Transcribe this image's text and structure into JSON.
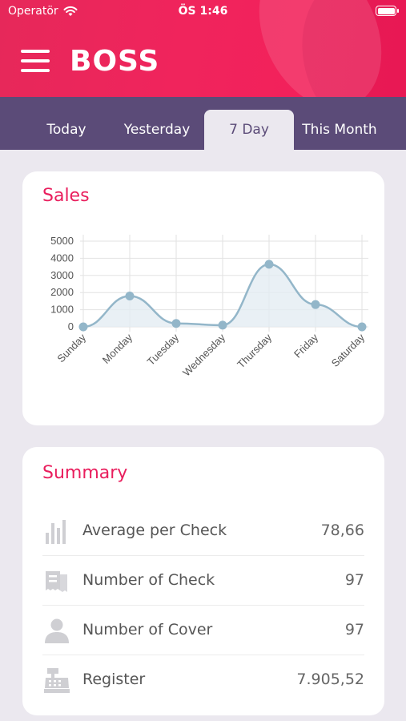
{
  "status_bar": {
    "carrier": "Operatör",
    "time": "ÖS 1:46"
  },
  "header": {
    "brand": "BOSS"
  },
  "tabs": [
    {
      "label": "Today"
    },
    {
      "label": "Yesterday"
    },
    {
      "label": "7 Day",
      "active": true
    },
    {
      "label": "This Month"
    }
  ],
  "sales": {
    "title": "Sales"
  },
  "chart_data": {
    "type": "area",
    "title": "",
    "xlabel": "",
    "ylabel": "",
    "categories": [
      "Sunday",
      "Monday",
      "Tuesday",
      "Wednesday",
      "Thursday",
      "Friday",
      "Saturday"
    ],
    "series": [
      {
        "values": [
          0,
          1800,
          200,
          100,
          3650,
          1300,
          0
        ]
      }
    ],
    "ylim": [
      0,
      5000
    ],
    "yticks": [
      5000,
      4000,
      3000,
      2000,
      1000,
      0
    ],
    "grid": true,
    "legend": "none",
    "colors": {
      "line": "#93b6c9",
      "fill": "#e3ecf3",
      "point": "#93b6c9"
    }
  },
  "summary": {
    "title": "Summary",
    "rows": [
      {
        "icon": "bar-chart-icon",
        "label": "Average per Check",
        "value": "78,66"
      },
      {
        "icon": "receipt-icon",
        "label": "Number of Check",
        "value": "97"
      },
      {
        "icon": "person-icon",
        "label": "Number of Cover",
        "value": "97"
      },
      {
        "icon": "cash-register-icon",
        "label": "Register",
        "value": "7.905,52"
      }
    ]
  },
  "colors": {
    "accent": "#e91e5d",
    "tab_bar": "#5b4b78",
    "background": "#ebe8ef"
  }
}
